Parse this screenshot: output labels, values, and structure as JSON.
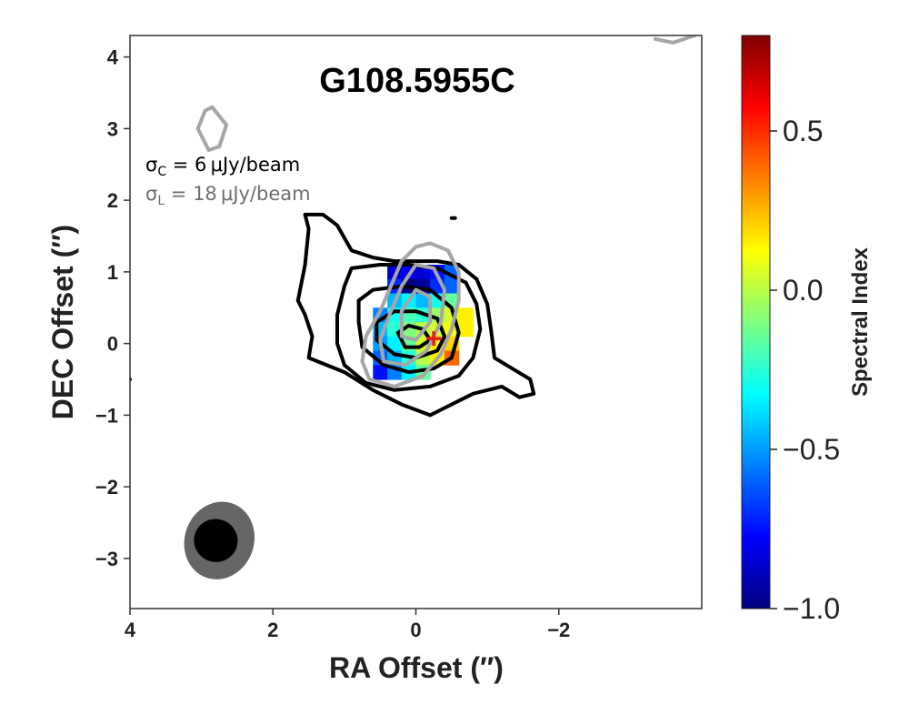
{
  "chart_data": {
    "type": "heatmap",
    "title": "G108.5955C",
    "xlabel": "RA Offset (″)",
    "ylabel": "DEC Offset (″)",
    "xlim": [
      4.0,
      -4.0
    ],
    "ylim": [
      -3.7,
      4.3
    ],
    "xticks": [
      4,
      2,
      0,
      -2
    ],
    "xtick_labels": [
      "4",
      "2",
      "0",
      "−2"
    ],
    "yticks": [
      4,
      3,
      2,
      1,
      0,
      -1,
      -2,
      -3
    ],
    "ytick_labels": [
      "4",
      "3",
      "2",
      "1",
      "0",
      "−1",
      "−2",
      "−3"
    ],
    "colorbar": {
      "label": "Spectral Index",
      "colormap": "jet",
      "range": [
        -1.0,
        0.8
      ],
      "ticks": [
        0.5,
        0.0,
        -0.5,
        -1.0
      ],
      "tick_labels": [
        "0.5",
        "0.0",
        "−0.5",
        "−1.0"
      ]
    },
    "annotations": {
      "sigma_c_symbol": "σ",
      "sigma_c_sub": "C",
      "sigma_c_value": " = 6 μJy/beam",
      "sigma_l_symbol": "σ",
      "sigma_l_sub": "L",
      "sigma_l_value": " = 18 μJy/beam",
      "sigma_c_color": "#000000",
      "sigma_l_color": "#6e6e6e"
    },
    "source_marker": {
      "ra": -0.25,
      "dec": 0.07,
      "color": "#e41a1c",
      "symbol": "+"
    },
    "beams": [
      {
        "name": "L-band beam",
        "ra": 2.75,
        "dec": -2.75,
        "major": 1.1,
        "minor": 0.95,
        "color": "#666666"
      },
      {
        "name": "C-band beam",
        "ra": 2.8,
        "dec": -2.75,
        "major": 0.6,
        "minor": 0.6,
        "color": "#000000"
      }
    ],
    "spectral_index_pixels": [
      {
        "ra": 0.3,
        "dec": 1.0,
        "value": -0.85
      },
      {
        "ra": 0.1,
        "dec": 1.0,
        "value": -0.8
      },
      {
        "ra": -0.1,
        "dec": 1.0,
        "value": -0.85
      },
      {
        "ra": -0.3,
        "dec": 1.0,
        "value": -0.75
      },
      {
        "ra": -0.5,
        "dec": 1.0,
        "value": -0.6
      },
      {
        "ra": 0.3,
        "dec": 0.8,
        "value": -0.7
      },
      {
        "ra": 0.1,
        "dec": 0.8,
        "value": -1.0
      },
      {
        "ra": -0.1,
        "dec": 0.8,
        "value": -0.95
      },
      {
        "ra": -0.3,
        "dec": 0.8,
        "value": -0.7
      },
      {
        "ra": -0.5,
        "dec": 0.8,
        "value": -0.6
      },
      {
        "ra": 0.3,
        "dec": 0.6,
        "value": -0.45
      },
      {
        "ra": 0.1,
        "dec": 0.6,
        "value": -0.35
      },
      {
        "ra": -0.1,
        "dec": 0.6,
        "value": -0.45
      },
      {
        "ra": -0.3,
        "dec": 0.6,
        "value": -0.3
      },
      {
        "ra": -0.5,
        "dec": 0.6,
        "value": -0.15
      },
      {
        "ra": 0.5,
        "dec": 0.4,
        "value": -0.55
      },
      {
        "ra": 0.3,
        "dec": 0.4,
        "value": -0.3
      },
      {
        "ra": 0.1,
        "dec": 0.4,
        "value": -0.2
      },
      {
        "ra": -0.1,
        "dec": 0.4,
        "value": -0.25
      },
      {
        "ra": -0.3,
        "dec": 0.4,
        "value": -0.05
      },
      {
        "ra": -0.5,
        "dec": 0.4,
        "value": 0.05
      },
      {
        "ra": -0.7,
        "dec": 0.4,
        "value": 0.15
      },
      {
        "ra": 0.5,
        "dec": 0.2,
        "value": -0.45
      },
      {
        "ra": 0.3,
        "dec": 0.2,
        "value": -0.25
      },
      {
        "ra": 0.1,
        "dec": 0.2,
        "value": -0.1
      },
      {
        "ra": -0.1,
        "dec": 0.2,
        "value": 0.0
      },
      {
        "ra": -0.3,
        "dec": 0.2,
        "value": 0.05
      },
      {
        "ra": -0.5,
        "dec": 0.2,
        "value": 0.1
      },
      {
        "ra": -0.7,
        "dec": 0.2,
        "value": 0.15
      },
      {
        "ra": 0.5,
        "dec": 0.0,
        "value": -0.5
      },
      {
        "ra": 0.3,
        "dec": 0.0,
        "value": -0.35
      },
      {
        "ra": 0.1,
        "dec": 0.0,
        "value": -0.15
      },
      {
        "ra": -0.1,
        "dec": 0.0,
        "value": 0.05
      },
      {
        "ra": -0.3,
        "dec": 0.0,
        "value": 0.15
      },
      {
        "ra": -0.5,
        "dec": 0.0,
        "value": 0.2
      },
      {
        "ra": 0.5,
        "dec": -0.2,
        "value": -0.6
      },
      {
        "ra": 0.3,
        "dec": -0.2,
        "value": -0.45
      },
      {
        "ra": 0.1,
        "dec": -0.2,
        "value": -0.25
      },
      {
        "ra": -0.1,
        "dec": -0.2,
        "value": 0.0
      },
      {
        "ra": -0.3,
        "dec": -0.2,
        "value": 0.15
      },
      {
        "ra": -0.5,
        "dec": -0.2,
        "value": 0.4
      },
      {
        "ra": 0.5,
        "dec": -0.4,
        "value": -0.75
      },
      {
        "ra": 0.3,
        "dec": -0.4,
        "value": -0.55
      },
      {
        "ra": 0.1,
        "dec": -0.4,
        "value": -0.35
      },
      {
        "ra": -0.1,
        "dec": -0.4,
        "value": -0.15
      }
    ],
    "continuum_contours": [
      {
        "band": "C",
        "color": "#000000",
        "points": [
          [
            1.65,
            0.6
          ],
          [
            1.55,
            1.1
          ],
          [
            1.5,
            1.6
          ],
          [
            1.55,
            1.8
          ],
          [
            1.3,
            1.8
          ],
          [
            1.1,
            1.65
          ],
          [
            0.9,
            1.3
          ],
          [
            0.6,
            1.2
          ],
          [
            0.3,
            1.15
          ],
          [
            0.0,
            1.15
          ],
          [
            -0.3,
            1.15
          ],
          [
            -0.6,
            1.1
          ],
          [
            -0.85,
            0.9
          ],
          [
            -1.0,
            0.55
          ],
          [
            -1.05,
            0.2
          ],
          [
            -1.1,
            -0.2
          ],
          [
            -1.35,
            -0.35
          ],
          [
            -1.6,
            -0.5
          ],
          [
            -1.65,
            -0.7
          ],
          [
            -1.45,
            -0.75
          ],
          [
            -1.2,
            -0.6
          ],
          [
            -0.8,
            -0.7
          ],
          [
            -0.4,
            -0.9
          ],
          [
            -0.2,
            -1.0
          ],
          [
            0.2,
            -0.85
          ],
          [
            0.6,
            -0.65
          ],
          [
            1.0,
            -0.4
          ],
          [
            1.5,
            -0.2
          ],
          [
            1.45,
            0.1
          ],
          [
            1.55,
            0.4
          ],
          [
            1.65,
            0.6
          ]
        ]
      },
      {
        "band": "C",
        "color": "#000000",
        "points": [
          [
            1.0,
            0.8
          ],
          [
            0.9,
            1.05
          ],
          [
            0.5,
            1.1
          ],
          [
            0.1,
            1.1
          ],
          [
            -0.3,
            1.05
          ],
          [
            -0.7,
            0.85
          ],
          [
            -0.85,
            0.55
          ],
          [
            -0.9,
            0.2
          ],
          [
            -0.8,
            -0.2
          ],
          [
            -0.6,
            -0.45
          ],
          [
            -0.2,
            -0.6
          ],
          [
            0.3,
            -0.65
          ],
          [
            0.7,
            -0.55
          ],
          [
            1.0,
            -0.3
          ],
          [
            1.1,
            0.0
          ],
          [
            1.1,
            0.4
          ],
          [
            1.0,
            0.8
          ]
        ]
      },
      {
        "band": "C",
        "color": "#000000",
        "points": [
          [
            0.8,
            0.6
          ],
          [
            0.6,
            0.75
          ],
          [
            0.2,
            0.8
          ],
          [
            -0.2,
            0.75
          ],
          [
            -0.5,
            0.5
          ],
          [
            -0.6,
            0.15
          ],
          [
            -0.5,
            -0.2
          ],
          [
            -0.25,
            -0.35
          ],
          [
            0.1,
            -0.4
          ],
          [
            0.45,
            -0.3
          ],
          [
            0.75,
            -0.05
          ],
          [
            0.8,
            0.3
          ],
          [
            0.8,
            0.6
          ]
        ]
      },
      {
        "band": "C",
        "color": "#000000",
        "points": [
          [
            0.55,
            0.3
          ],
          [
            0.3,
            0.45
          ],
          [
            0.0,
            0.45
          ],
          [
            -0.3,
            0.35
          ],
          [
            -0.4,
            0.1
          ],
          [
            -0.3,
            -0.1
          ],
          [
            0.0,
            -0.2
          ],
          [
            0.3,
            -0.15
          ],
          [
            0.55,
            0.05
          ],
          [
            0.55,
            0.3
          ]
        ]
      },
      {
        "band": "C",
        "color": "#000000",
        "points": [
          [
            0.25,
            0.15
          ],
          [
            0.1,
            0.25
          ],
          [
            -0.1,
            0.2
          ],
          [
            -0.2,
            0.05
          ],
          [
            -0.05,
            -0.05
          ],
          [
            0.15,
            -0.05
          ],
          [
            0.25,
            0.15
          ]
        ]
      },
      {
        "band": "C",
        "color": "#000000",
        "points": [
          [
            4.05,
            -0.45
          ],
          [
            4.0,
            -0.5
          ],
          [
            4.05,
            -0.55
          ]
        ]
      },
      {
        "band": "C",
        "color": "#000000",
        "points": [
          [
            -0.5,
            1.75
          ],
          [
            -0.55,
            1.75
          ]
        ]
      }
    ],
    "line_contours": [
      {
        "band": "L",
        "color": "#a6a6a6",
        "points": [
          [
            0.0,
            1.35
          ],
          [
            -0.2,
            1.4
          ],
          [
            -0.45,
            1.3
          ],
          [
            -0.6,
            1.0
          ],
          [
            -0.6,
            0.6
          ],
          [
            -0.5,
            0.2
          ],
          [
            -0.35,
            -0.15
          ],
          [
            -0.1,
            -0.45
          ],
          [
            0.3,
            -0.6
          ],
          [
            0.65,
            -0.5
          ],
          [
            0.75,
            -0.25
          ],
          [
            0.7,
            0.1
          ],
          [
            0.5,
            0.45
          ],
          [
            0.35,
            0.8
          ],
          [
            0.2,
            1.15
          ],
          [
            0.0,
            1.35
          ]
        ]
      },
      {
        "band": "L",
        "color": "#a6a6a6",
        "points": [
          [
            0.0,
            1.1
          ],
          [
            -0.25,
            1.05
          ],
          [
            -0.4,
            0.75
          ],
          [
            -0.35,
            0.3
          ],
          [
            -0.15,
            -0.1
          ],
          [
            0.15,
            -0.3
          ],
          [
            0.45,
            -0.25
          ],
          [
            0.5,
            0.05
          ],
          [
            0.35,
            0.45
          ],
          [
            0.2,
            0.8
          ],
          [
            0.0,
            1.1
          ]
        ]
      },
      {
        "band": "L",
        "color": "#a6a6a6",
        "points": [
          [
            0.0,
            0.75
          ],
          [
            -0.2,
            0.65
          ],
          [
            -0.2,
            0.3
          ],
          [
            0.0,
            0.05
          ],
          [
            0.2,
            0.1
          ],
          [
            0.2,
            0.45
          ],
          [
            0.0,
            0.75
          ]
        ]
      },
      {
        "band": "L",
        "color": "#a6a6a6",
        "points": [
          [
            2.85,
            3.3
          ],
          [
            2.65,
            3.05
          ],
          [
            2.75,
            2.75
          ],
          [
            2.9,
            2.7
          ],
          [
            3.05,
            3.0
          ],
          [
            2.95,
            3.25
          ],
          [
            2.85,
            3.3
          ]
        ]
      },
      {
        "band": "L",
        "color": "#a6a6a6",
        "points": [
          [
            -3.35,
            4.25
          ],
          [
            -3.6,
            4.2
          ],
          [
            -3.9,
            4.3
          ]
        ]
      }
    ]
  }
}
